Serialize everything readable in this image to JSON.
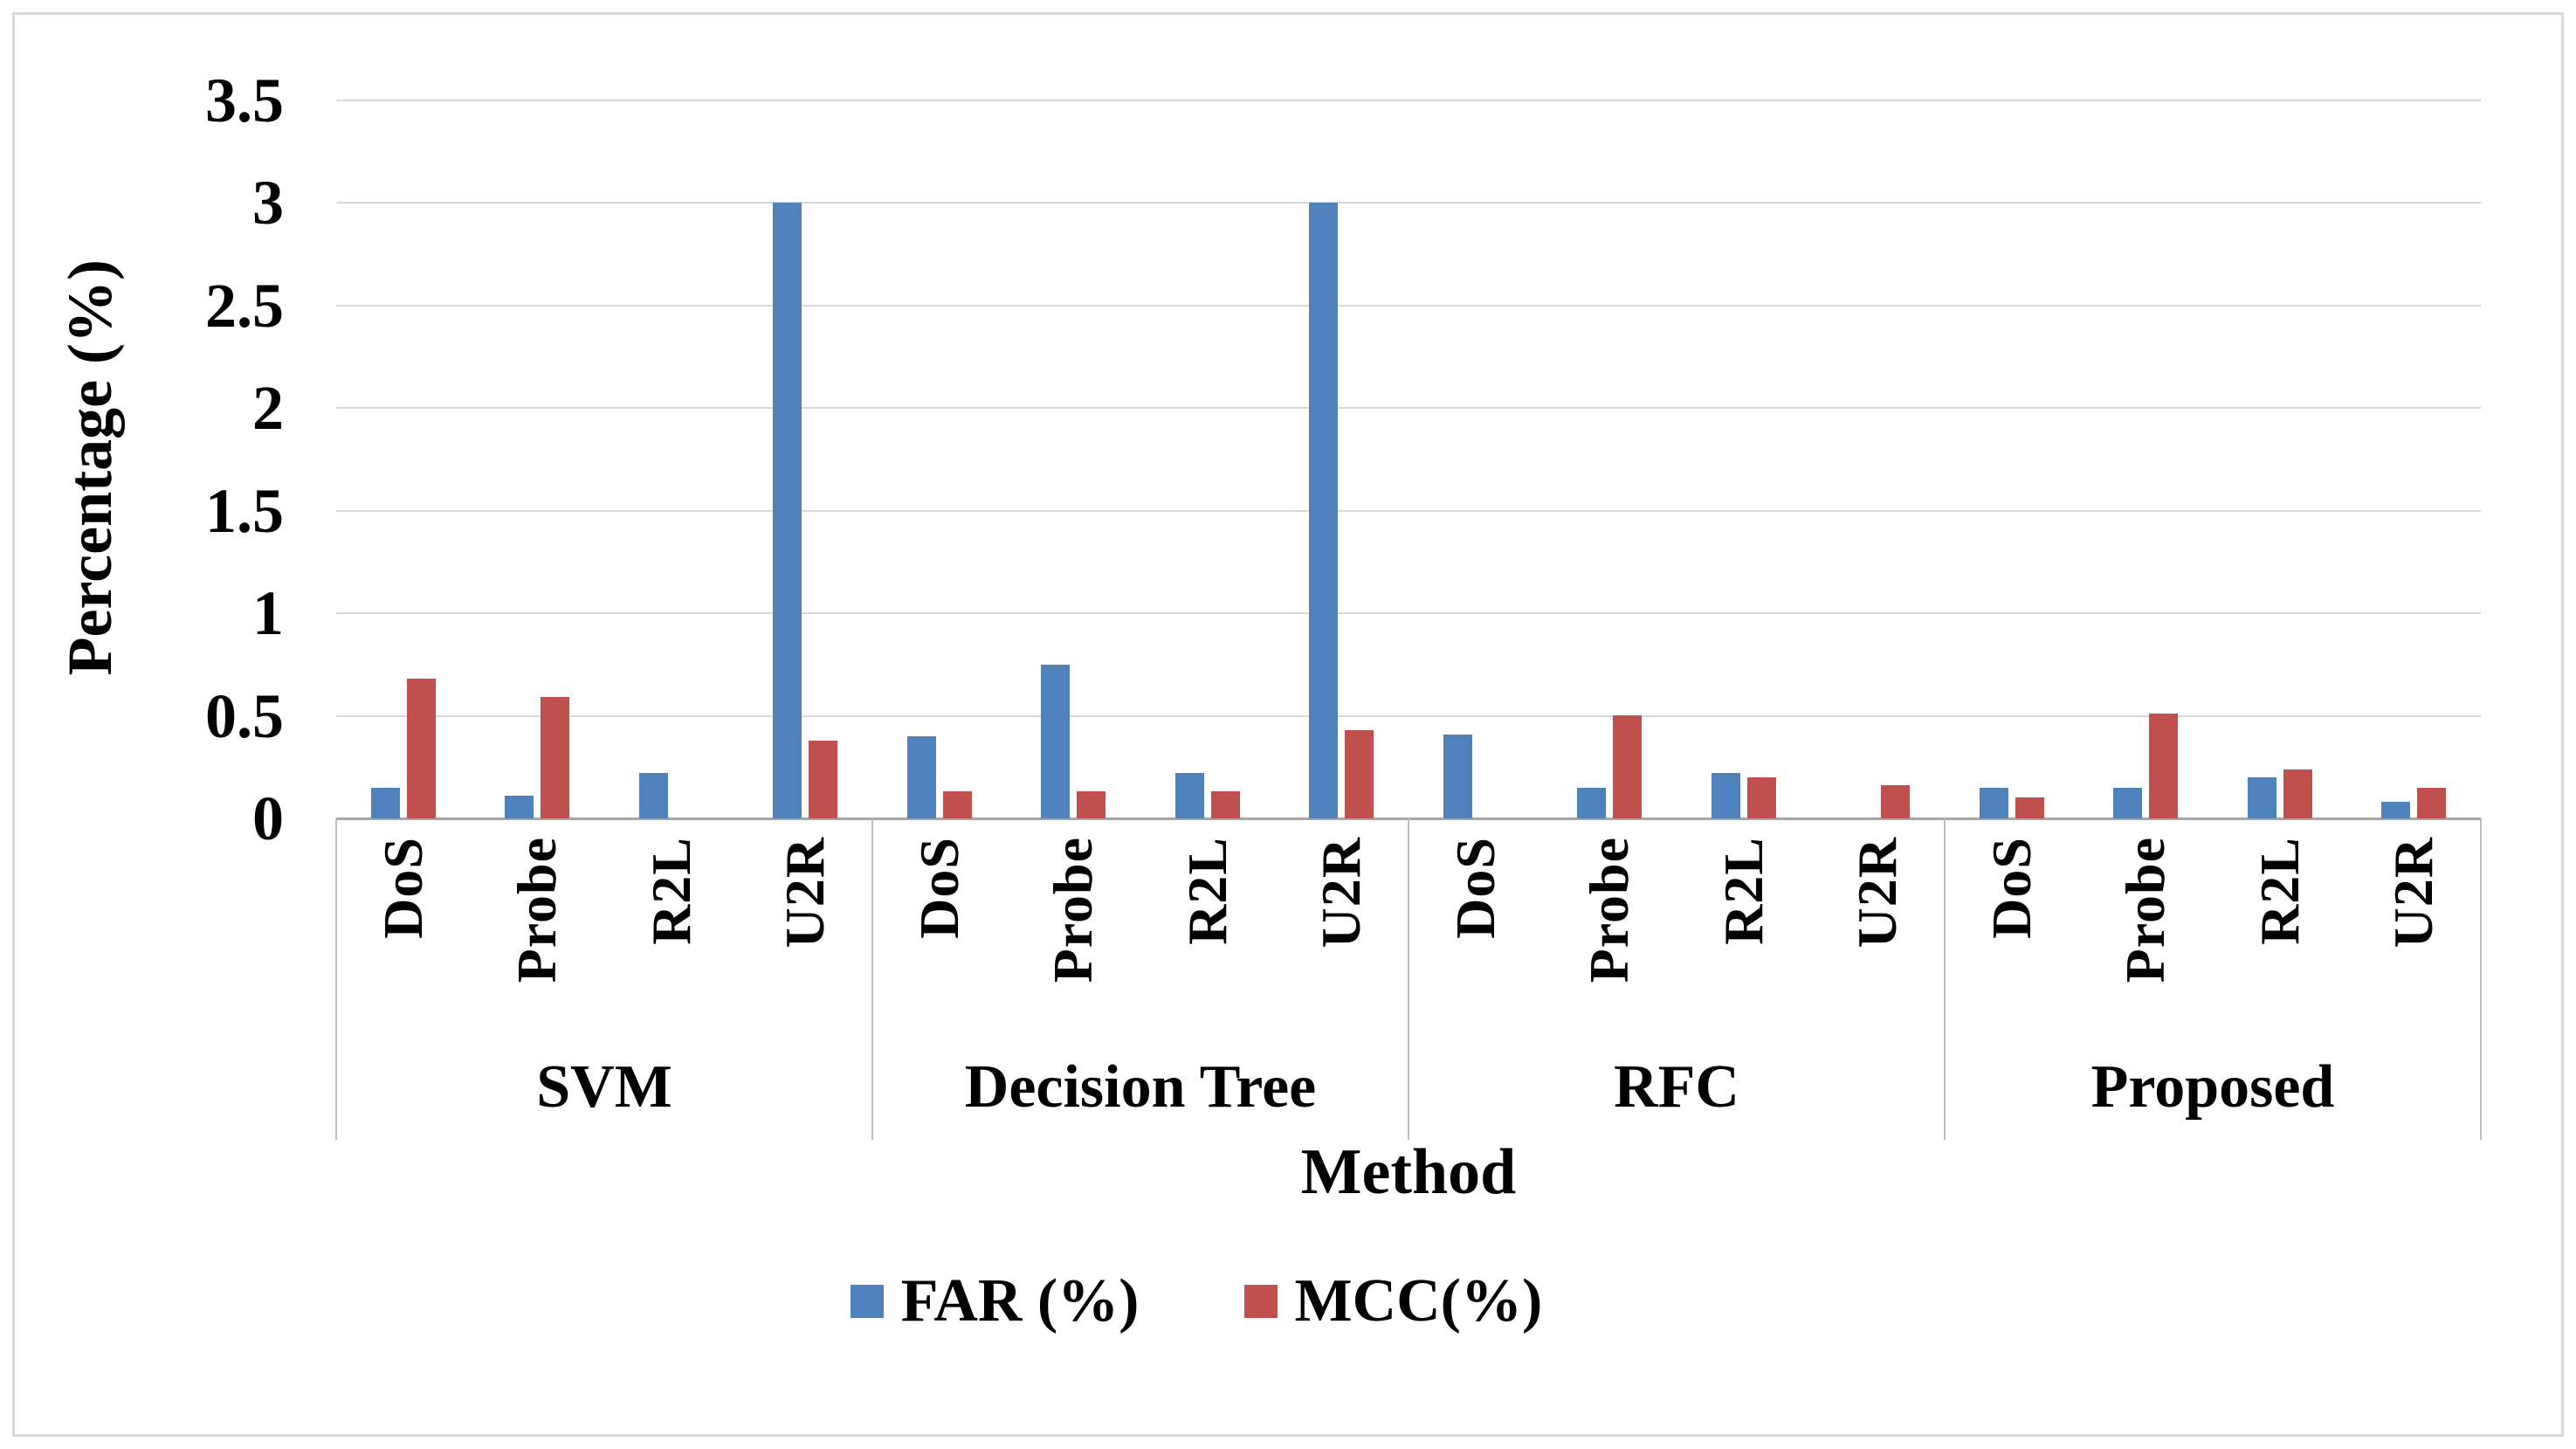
{
  "page": {
    "background": "#ffffff",
    "border_color": "#d9d9d9"
  },
  "chart_data": {
    "type": "bar",
    "title": "",
    "ylabel": "Percentage (%)",
    "xlabel": "Method",
    "ylim": [
      0,
      3.5
    ],
    "ytick_step": 0.5,
    "ytick_labels": [
      "0",
      "0.5",
      "1",
      "1.5",
      "2",
      "2.5",
      "3",
      "3.5"
    ],
    "grid": true,
    "legend_position": "bottom",
    "groups": [
      "SVM",
      "Decision Tree",
      "RFC",
      "Proposed"
    ],
    "categories": [
      "DoS",
      "Probe",
      "R2L",
      "U2R"
    ],
    "series": [
      {
        "name": "FAR (%)",
        "color": "#4F81BD",
        "values_by_group": [
          [
            0.15,
            0.11,
            0.22,
            3.0
          ],
          [
            0.4,
            0.75,
            0.22,
            3.0
          ],
          [
            0.41,
            0.15,
            0.22,
            0
          ],
          [
            0.15,
            0.15,
            0.2,
            0.08
          ]
        ]
      },
      {
        "name": "MCC(%)",
        "color": "#C0504D",
        "values_by_group": [
          [
            0.68,
            0.59,
            0,
            0.38
          ],
          [
            0.13,
            0.13,
            0.13,
            0.43
          ],
          [
            0,
            0.5,
            0.2,
            0.16
          ],
          [
            0.1,
            0.51,
            0.24,
            0.15
          ]
        ]
      }
    ],
    "colors": {
      "gridline": "#D9D9D9",
      "baseline": "#A6A6A6",
      "separator": "#BFBFBF"
    }
  },
  "legend": {
    "items": [
      {
        "label": "FAR (%)",
        "color": "#4F81BD"
      },
      {
        "label": "MCC(%)",
        "color": "#C0504D"
      }
    ]
  }
}
